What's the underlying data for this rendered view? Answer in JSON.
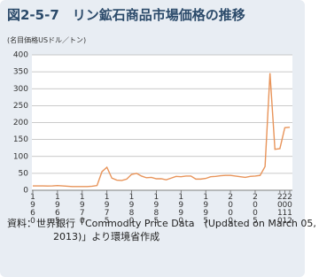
{
  "chart_data": {
    "type": "line",
    "title": "図2-5-7　リン鉱石商品市場価格の推移",
    "y_label": "(名目価格USドル／トン)",
    "source": "資料：世界銀行「Commodity Price Data　(Updated on March 05, 2013)」より環境省作成",
    "x": [
      1960,
      1961,
      1962,
      1963,
      1964,
      1965,
      1966,
      1967,
      1968,
      1969,
      1970,
      1971,
      1972,
      1973,
      1974,
      1975,
      1976,
      1977,
      1978,
      1979,
      1980,
      1981,
      1982,
      1983,
      1984,
      1985,
      1986,
      1987,
      1988,
      1989,
      1990,
      1991,
      1992,
      1993,
      1994,
      1995,
      1996,
      1997,
      1998,
      1999,
      2000,
      2001,
      2002,
      2003,
      2004,
      2005,
      2006,
      2007,
      2008,
      2009,
      2010,
      2011,
      2012
    ],
    "values": [
      13,
      13,
      13,
      12.5,
      13,
      14,
      13,
      12,
      11,
      11,
      11,
      11,
      12,
      14,
      55,
      68,
      36,
      30,
      29,
      33,
      47,
      50,
      42,
      37,
      38,
      34,
      34,
      31,
      36,
      41,
      40,
      42,
      42,
      33,
      33,
      35,
      40,
      41,
      43,
      44,
      44,
      42,
      40,
      38,
      41,
      42,
      44,
      70,
      346,
      121,
      123,
      185,
      186
    ],
    "color": "#e8945a",
    "xlim": [
      1960,
      2012
    ],
    "xticks": [
      1960,
      1965,
      1970,
      1975,
      1980,
      1985,
      1990,
      1995,
      2000,
      2005,
      2010,
      2011,
      2012
    ],
    "ylim": [
      0,
      400
    ],
    "yticks": [
      0,
      50,
      100,
      150,
      200,
      250,
      300,
      350,
      400
    ],
    "grid": true
  }
}
